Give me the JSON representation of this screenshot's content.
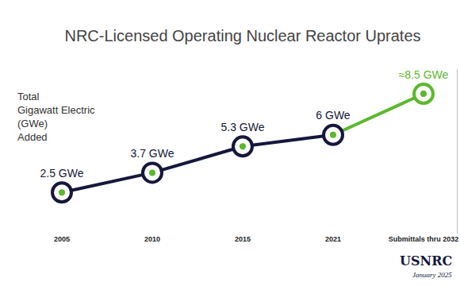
{
  "chart_data": {
    "type": "line",
    "title": "NRC-Licensed Operating Nuclear Reactor Uprates",
    "y_label": "Total\nGigawatt Electric\n(GWe)\nAdded",
    "categories": [
      "2005",
      "2010",
      "2015",
      "2021",
      "Submittals thru 2032"
    ],
    "values": [
      2.5,
      3.7,
      5.3,
      6,
      8.5
    ],
    "value_labels": [
      "2.5 GWe",
      "3.7 GWe",
      "5.3 GWe",
      "6 GWe",
      "≈8.5 GWe"
    ],
    "colors": [
      "#15173b",
      "#15173b",
      "#15173b",
      "#15173b",
      "#5cb82e"
    ],
    "ylim": [
      0,
      10
    ],
    "tick_labels": "x",
    "grid": false,
    "data_labels": true,
    "marker": "ring",
    "source": "USNRC",
    "date": "January 2025"
  }
}
